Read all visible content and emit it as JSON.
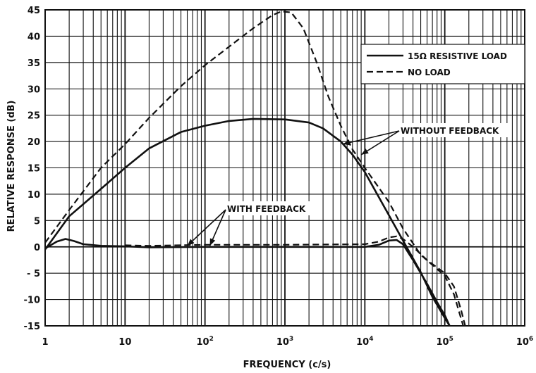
{
  "chart_data": {
    "type": "line",
    "title": "",
    "xlabel": "FREQUENCY (c/s)",
    "ylabel": "RELATIVE RESPONSE (dB)",
    "xscale": "log",
    "xlim": [
      1,
      1000000
    ],
    "ylim": [
      -15,
      45
    ],
    "grid": true,
    "x_ticks": [
      {
        "value": 1,
        "label": "1"
      },
      {
        "value": 10,
        "label": "10"
      },
      {
        "value": 100,
        "label": "10",
        "sup": "2"
      },
      {
        "value": 1000,
        "label": "10",
        "sup": "3"
      },
      {
        "value": 10000,
        "label": "10",
        "sup": "4"
      },
      {
        "value": 100000,
        "label": "10",
        "sup": "5"
      },
      {
        "value": 1000000,
        "label": "10",
        "sup": "6"
      }
    ],
    "y_ticks": [
      {
        "value": 45,
        "label": "45"
      },
      {
        "value": 40,
        "label": "40"
      },
      {
        "value": 35,
        "label": "35"
      },
      {
        "value": 30,
        "label": "30"
      },
      {
        "value": 25,
        "label": "25"
      },
      {
        "value": 20,
        "label": "20"
      },
      {
        "value": 15,
        "label": "15"
      },
      {
        "value": 10,
        "label": "10"
      },
      {
        "value": 5,
        "label": "5"
      },
      {
        "value": 0,
        "label": "0"
      },
      {
        "value": -5,
        "label": "- 5"
      },
      {
        "value": -10,
        "label": "-10"
      },
      {
        "value": -15,
        "label": "-15"
      }
    ],
    "legend": {
      "placement": "top-right",
      "entries": [
        {
          "label": "15Ω RESISTIVE LOAD",
          "style": "solid"
        },
        {
          "label": "NO LOAD",
          "style": "dashed"
        }
      ]
    },
    "annotations": [
      {
        "text": "WITHOUT FEEDBACK",
        "x": 150000,
        "y": 21,
        "arrows_to": [
          {
            "x": 5300,
            "y": 19.5
          },
          {
            "x": 9000,
            "y": 17.5
          }
        ]
      },
      {
        "text": "WITH FEEDBACK",
        "x": 900,
        "y": 7,
        "arrows_to": [
          {
            "x": 60,
            "y": 0.2
          },
          {
            "x": 115,
            "y": 0.2
          }
        ]
      }
    ],
    "series": [
      {
        "name": "15Ω RESISTIVE LOAD",
        "group": "WITHOUT FEEDBACK",
        "style": "solid",
        "points": [
          [
            1,
            -0.5
          ],
          [
            2,
            5.8
          ],
          [
            5,
            11
          ],
          [
            10,
            15
          ],
          [
            20,
            18.7
          ],
          [
            50,
            21.8
          ],
          [
            100,
            23
          ],
          [
            200,
            23.9
          ],
          [
            400,
            24.3
          ],
          [
            1000,
            24.2
          ],
          [
            2000,
            23.6
          ],
          [
            3000,
            22.5
          ],
          [
            5000,
            20
          ],
          [
            7000,
            17.5
          ],
          [
            10000,
            14.2
          ],
          [
            20000,
            6
          ],
          [
            30000,
            1.2
          ],
          [
            50000,
            -4.8
          ],
          [
            70000,
            -9.5
          ],
          [
            100000,
            -13.5
          ],
          [
            115000,
            -15
          ]
        ]
      },
      {
        "name": "NO LOAD",
        "group": "WITHOUT FEEDBACK",
        "style": "dashed",
        "points": [
          [
            1,
            0.8
          ],
          [
            2,
            7
          ],
          [
            5,
            15
          ],
          [
            10,
            19.5
          ],
          [
            20,
            24.5
          ],
          [
            50,
            30.5
          ],
          [
            100,
            34.5
          ],
          [
            200,
            38
          ],
          [
            400,
            41.5
          ],
          [
            700,
            44
          ],
          [
            900,
            44.7
          ],
          [
            1200,
            44.5
          ],
          [
            1700,
            41.5
          ],
          [
            2500,
            35
          ],
          [
            3500,
            28.5
          ],
          [
            5000,
            23
          ],
          [
            7000,
            18.5
          ],
          [
            10000,
            15
          ],
          [
            20000,
            8.5
          ],
          [
            30000,
            3.5
          ],
          [
            50000,
            -1.5
          ],
          [
            100000,
            -5.5
          ],
          [
            130000,
            -9
          ],
          [
            170000,
            -15
          ]
        ]
      },
      {
        "name": "15Ω RESISTIVE LOAD",
        "group": "WITH FEEDBACK",
        "style": "solid",
        "points": [
          [
            1,
            -0.3
          ],
          [
            1.4,
            1
          ],
          [
            1.8,
            1.5
          ],
          [
            2.3,
            1.1
          ],
          [
            3,
            0.5
          ],
          [
            5,
            0.2
          ],
          [
            10,
            0.1
          ],
          [
            20,
            -0.1
          ],
          [
            100,
            0
          ],
          [
            1000,
            0
          ],
          [
            10000,
            0
          ],
          [
            15000,
            0.4
          ],
          [
            20000,
            1.2
          ],
          [
            25000,
            1.3
          ],
          [
            30000,
            0.5
          ],
          [
            40000,
            -2.5
          ],
          [
            60000,
            -7
          ],
          [
            80000,
            -10.5
          ],
          [
            100000,
            -13
          ],
          [
            115000,
            -15
          ]
        ]
      },
      {
        "name": "NO LOAD",
        "group": "WITH FEEDBACK",
        "style": "dashed",
        "points": [
          [
            10,
            0.3
          ],
          [
            20,
            0.2
          ],
          [
            100,
            0.4
          ],
          [
            1000,
            0.4
          ],
          [
            10000,
            0.5
          ],
          [
            15000,
            1
          ],
          [
            20000,
            1.8
          ],
          [
            25000,
            2
          ],
          [
            30000,
            1.5
          ],
          [
            40000,
            0
          ],
          [
            60000,
            -2.5
          ],
          [
            100000,
            -5
          ],
          [
            130000,
            -7.5
          ],
          [
            160000,
            -12
          ],
          [
            180000,
            -15
          ]
        ]
      }
    ]
  }
}
